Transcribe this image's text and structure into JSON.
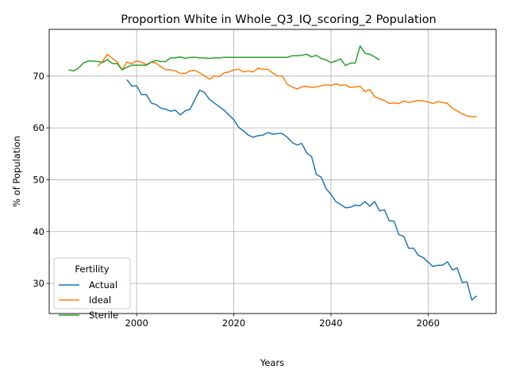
{
  "chart_data": {
    "type": "line",
    "title": "Proportion White in Whole_Q3_IQ_scoring_2 Population",
    "xlabel": "Years",
    "ylabel": "% of Population",
    "xlim": [
      1982,
      2074
    ],
    "ylim": [
      24.2,
      79.0
    ],
    "xticks": [
      2000,
      2020,
      2040,
      2060
    ],
    "yticks": [
      30,
      40,
      50,
      60,
      70
    ],
    "grid": true,
    "legend": {
      "title": "Fertility",
      "placement": "lower-left"
    },
    "series": [
      {
        "name": "Actual",
        "color": "#1f77b4",
        "x": [
          1998,
          1999,
          2000,
          2001,
          2002,
          2003,
          2004,
          2005,
          2006,
          2007,
          2008,
          2009,
          2010,
          2011,
          2012,
          2013,
          2014,
          2015,
          2016,
          2017,
          2018,
          2019,
          2020,
          2021,
          2022,
          2023,
          2024,
          2025,
          2026,
          2027,
          2028,
          2029,
          2030,
          2031,
          2032,
          2033,
          2034,
          2035,
          2036,
          2037,
          2038,
          2039,
          2040,
          2041,
          2042,
          2043,
          2044,
          2045,
          2046,
          2047,
          2048,
          2049,
          2050,
          2051,
          2052,
          2053,
          2054,
          2055,
          2056,
          2057,
          2058,
          2059,
          2060,
          2061,
          2062,
          2063,
          2064,
          2065,
          2066,
          2067,
          2068,
          2069,
          2070
        ],
        "values": [
          69.3,
          68.1,
          68.1,
          66.4,
          66.4,
          64.8,
          64.5,
          63.8,
          63.6,
          63.2,
          63.4,
          62.5,
          63.3,
          63.6,
          65.5,
          67.3,
          66.8,
          65.5,
          64.8,
          64.1,
          63.4,
          62.5,
          61.6,
          60.1,
          59.4,
          58.6,
          58.2,
          58.5,
          58.6,
          59.1,
          58.8,
          58.9,
          58.9,
          58.2,
          57.2,
          56.7,
          57.0,
          55.2,
          54.5,
          51.0,
          50.5,
          48.3,
          47.2,
          45.8,
          45.2,
          44.6,
          44.7,
          45.1,
          45.0,
          45.8,
          44.9,
          45.8,
          44.0,
          44.2,
          42.1,
          42.0,
          39.4,
          39.1,
          36.8,
          36.8,
          35.4,
          35.0,
          34.1,
          33.3,
          33.5,
          33.5,
          34.2,
          32.6,
          33.0,
          30.2,
          30.3,
          26.8,
          27.6
        ]
      },
      {
        "name": "Ideal",
        "color": "#ff7f0e",
        "x": [
          1992,
          1993,
          1994,
          1995,
          1996,
          1997,
          1998,
          1999,
          2000,
          2001,
          2002,
          2003,
          2004,
          2005,
          2006,
          2007,
          2008,
          2009,
          2010,
          2011,
          2012,
          2013,
          2014,
          2015,
          2016,
          2017,
          2018,
          2019,
          2020,
          2021,
          2022,
          2023,
          2024,
          2025,
          2026,
          2027,
          2028,
          2029,
          2030,
          2031,
          2032,
          2033,
          2034,
          2035,
          2036,
          2037,
          2038,
          2039,
          2040,
          2041,
          2042,
          2043,
          2044,
          2045,
          2046,
          2047,
          2048,
          2049,
          2050,
          2051,
          2052,
          2053,
          2054,
          2055,
          2056,
          2057,
          2058,
          2059,
          2060,
          2061,
          2062,
          2063,
          2064,
          2065,
          2066,
          2067,
          2068,
          2069,
          2070
        ],
        "values": [
          71.9,
          72.9,
          74.2,
          73.4,
          72.7,
          71.2,
          72.7,
          72.4,
          72.9,
          72.7,
          72.2,
          72.7,
          72.5,
          71.8,
          71.2,
          71.2,
          71.0,
          70.5,
          70.5,
          71.0,
          71.1,
          70.6,
          70.0,
          69.4,
          70.0,
          69.9,
          70.6,
          70.8,
          71.2,
          71.3,
          70.8,
          71.0,
          70.8,
          71.5,
          71.3,
          71.3,
          70.6,
          70.0,
          70.0,
          68.4,
          67.9,
          67.5,
          67.9,
          68.0,
          67.8,
          67.9,
          68.1,
          68.3,
          68.2,
          68.5,
          68.2,
          68.3,
          67.8,
          67.9,
          68.0,
          67.0,
          67.4,
          66.0,
          65.6,
          65.3,
          64.7,
          64.8,
          64.7,
          65.2,
          64.9,
          65.1,
          65.3,
          65.2,
          65.0,
          64.7,
          65.1,
          64.9,
          64.7,
          63.8,
          63.3,
          62.7,
          62.3,
          62.2,
          62.1
        ]
      },
      {
        "name": "Sterile",
        "color": "#2ca02c",
        "x": [
          1986,
          1987,
          1988,
          1989,
          1990,
          1991,
          1992,
          1993,
          1994,
          1995,
          1996,
          1997,
          1998,
          1999,
          2000,
          2001,
          2002,
          2003,
          2004,
          2005,
          2006,
          2007,
          2008,
          2009,
          2010,
          2011,
          2012,
          2013,
          2014,
          2015,
          2016,
          2017,
          2018,
          2019,
          2020,
          2021,
          2022,
          2023,
          2024,
          2025,
          2026,
          2027,
          2028,
          2029,
          2030,
          2031,
          2032,
          2033,
          2034,
          2035,
          2036,
          2037,
          2038,
          2039,
          2040,
          2041,
          2042,
          2043,
          2044,
          2045,
          2046,
          2047,
          2048,
          2049,
          2050
        ],
        "values": [
          71.2,
          71.0,
          71.5,
          72.5,
          72.9,
          72.9,
          72.8,
          72.6,
          73.2,
          72.4,
          72.4,
          71.2,
          71.7,
          72.1,
          72.1,
          72.1,
          72.1,
          72.7,
          73.0,
          72.8,
          72.8,
          73.5,
          73.5,
          73.7,
          73.4,
          73.6,
          73.6,
          73.5,
          73.5,
          73.4,
          73.5,
          73.5,
          73.6,
          73.6,
          73.6,
          73.6,
          73.6,
          73.6,
          73.6,
          73.6,
          73.6,
          73.6,
          73.6,
          73.6,
          73.6,
          73.6,
          73.9,
          73.9,
          74.0,
          74.2,
          73.7,
          74.0,
          73.4,
          73.1,
          72.6,
          72.9,
          73.3,
          72.0,
          72.5,
          72.5,
          75.8,
          74.4,
          74.2,
          73.7,
          73.1
        ]
      }
    ]
  }
}
